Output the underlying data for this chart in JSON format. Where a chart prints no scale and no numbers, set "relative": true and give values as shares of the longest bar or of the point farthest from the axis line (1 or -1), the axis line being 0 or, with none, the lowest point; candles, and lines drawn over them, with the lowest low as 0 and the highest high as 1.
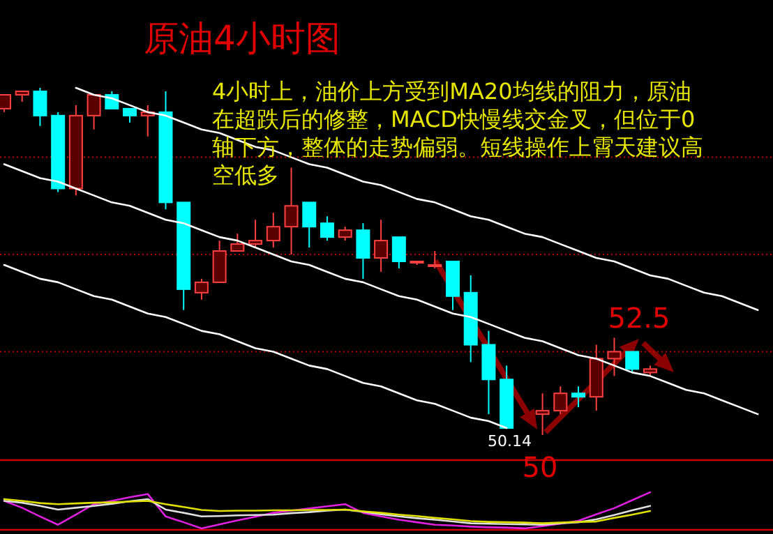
{
  "chart_data": [
    {
      "type": "candlestick",
      "title": "原油4小时图",
      "relative": true,
      "categories": [
        null,
        null,
        null,
        null,
        null,
        null,
        null,
        null,
        null,
        null,
        null,
        null,
        null,
        null,
        null,
        null,
        null,
        null,
        null,
        null,
        null,
        null,
        null,
        null,
        null,
        null,
        null,
        null,
        null,
        null,
        null,
        null,
        null,
        null,
        null,
        null,
        null,
        null,
        null,
        null,
        null,
        null,
        null
      ],
      "ohlc": [
        [
          0.94,
          0.98,
          0.93,
          0.98
        ],
        [
          0.98,
          0.99,
          0.96,
          0.99
        ],
        [
          0.99,
          1,
          0.89,
          0.92
        ],
        [
          0.92,
          0.93,
          0.7,
          0.71
        ],
        [
          0.71,
          0.95,
          0.69,
          0.92
        ],
        [
          0.92,
          0.98,
          0.88,
          0.98
        ],
        [
          0.98,
          0.99,
          0.94,
          0.94
        ],
        [
          0.94,
          0.94,
          0.9,
          0.92
        ],
        [
          0.92,
          0.95,
          0.86,
          0.93
        ],
        [
          0.93,
          0.99,
          0.65,
          0.67
        ],
        [
          0.67,
          0.67,
          0.36,
          0.42
        ],
        [
          0.41,
          0.45,
          0.39,
          0.44
        ],
        [
          0.44,
          0.56,
          0.44,
          0.53
        ],
        [
          0.53,
          0.58,
          0.53,
          0.55
        ],
        [
          0.55,
          0.62,
          0.54,
          0.56
        ],
        [
          0.56,
          0.64,
          0.54,
          0.6
        ],
        [
          0.6,
          0.77,
          0.52,
          0.66
        ],
        [
          0.67,
          0.67,
          0.54,
          0.6
        ],
        [
          0.61,
          0.63,
          0.56,
          0.57
        ],
        [
          0.57,
          0.6,
          0.56,
          0.59
        ],
        [
          0.59,
          0.61,
          0.45,
          0.51
        ],
        [
          0.51,
          0.62,
          0.47,
          0.56
        ],
        [
          0.57,
          0.57,
          0.48,
          0.5
        ],
        [
          0.5,
          0.5,
          0.49,
          0.5
        ],
        [
          0.49,
          0.53,
          0.48,
          0.49
        ],
        [
          0.5,
          0.5,
          0.36,
          0.4
        ],
        [
          0.41,
          0.46,
          0.21,
          0.26
        ],
        [
          0.26,
          0.3,
          0.06,
          0.16
        ],
        [
          0.16,
          0.2,
          0.02,
          0.02
        ],
        null,
        [
          0.06,
          0.12,
          0,
          0.07
        ],
        [
          0.07,
          0.14,
          0.06,
          0.12
        ],
        [
          0.12,
          0.14,
          0.08,
          0.11
        ],
        [
          0.11,
          0.26,
          0.07,
          0.22
        ],
        [
          0.22,
          0.28,
          0.17,
          0.24
        ],
        [
          0.24,
          0.24,
          0.18,
          0.19
        ],
        [
          0.18,
          0.2,
          0.17,
          0.19
        ],
        null,
        null,
        null,
        null,
        null,
        null
      ],
      "series": [
        {
          "type": "line",
          "color": "#ffffff",
          "values": [
            null,
            null,
            null,
            null,
            1.0,
            0.98,
            0.97,
            0.95,
            0.93,
            0.92,
            0.9,
            0.88,
            0.87,
            0.85,
            0.83,
            0.82,
            0.8,
            0.78,
            0.77,
            0.75,
            0.73,
            0.72,
            0.7,
            0.68,
            0.67,
            0.65,
            0.63,
            0.62,
            0.6,
            0.58,
            0.57,
            0.55,
            0.53,
            0.51,
            0.5,
            0.48,
            0.46,
            0.45,
            0.43,
            0.41,
            0.4,
            0.38,
            0.36
          ]
        },
        {
          "type": "line",
          "color": "#ffffff",
          "values": [
            0.78,
            0.76,
            0.74,
            0.73,
            0.71,
            0.69,
            0.67,
            0.66,
            0.64,
            0.62,
            0.61,
            0.59,
            0.57,
            0.56,
            0.54,
            0.52,
            0.5,
            0.49,
            0.47,
            0.45,
            0.44,
            0.42,
            0.4,
            0.39,
            0.37,
            0.35,
            0.34,
            0.32,
            0.3,
            0.28,
            0.27,
            0.25,
            0.23,
            0.22,
            0.2,
            0.18,
            0.17,
            0.15,
            0.13,
            0.12,
            0.1,
            0.08,
            0.06
          ]
        },
        {
          "type": "line",
          "color": "#ffffff",
          "values": [
            0.49,
            0.47,
            0.45,
            0.44,
            0.42,
            0.4,
            0.39,
            0.37,
            0.35,
            0.34,
            0.32,
            0.3,
            0.29,
            0.27,
            0.25,
            0.24,
            0.22,
            0.2,
            0.19,
            0.17,
            0.15,
            0.14,
            0.12,
            0.1,
            0.09,
            0.07,
            0.05,
            0.04,
            0.02,
            null,
            null,
            null,
            null,
            null,
            null,
            null,
            null,
            null,
            null,
            null,
            null,
            null,
            null
          ]
        }
      ],
      "ref_lines": [
        {
          "axis": "y",
          "value": 0.8,
          "color": "#c00000",
          "line_style": "dotted"
        },
        {
          "axis": "y",
          "value": 0.52,
          "color": "#c00000",
          "line_style": "dotted"
        },
        {
          "axis": "y",
          "value": 0.24,
          "color": "#c00000",
          "line_style": "dotted"
        }
      ],
      "annotations": [
        "4小时上，油价上方受到MA20均线的阻力，原油在超跌后的修整，MACD快慢线交金叉，但位于0轴下方，整体的走势偏弱。短线操作上霄天建议高空低多",
        {
          "text": "50.14",
          "y": 0
        },
        {
          "text": "50",
          "y": 0
        },
        "52.5"
      ]
    },
    {
      "type": "line",
      "relative": true,
      "categories": [
        null,
        null,
        null,
        null,
        null,
        null,
        null,
        null,
        null,
        null,
        null,
        null,
        null,
        null,
        null,
        null,
        null,
        null,
        null,
        null,
        null,
        null,
        null,
        null,
        null,
        null,
        null,
        null,
        null,
        null,
        null,
        null,
        null,
        null,
        null,
        null,
        null
      ],
      "series": [
        {
          "color": "#e020e0",
          "values": [
            0.76,
            0.57,
            0.33,
            0.1,
            0.38,
            0.67,
            0.76,
            0.86,
            0.95,
            0.33,
            0.17,
            0,
            0.11,
            0.22,
            0.32,
            0.43,
            0.49,
            0.55,
            0.61,
            0.67,
            0.43,
            0.33,
            0.24,
            0.17,
            0.1,
            0.08,
            0.05,
            0.03,
            0.02,
            0,
            0.06,
            0.13,
            0.21,
            0.39,
            0.56,
            0.78,
            1
          ]
        },
        {
          "color": "#e0e0e0",
          "values": [
            0.76,
            0.71,
            0.62,
            0.52,
            0.57,
            0.62,
            0.68,
            0.75,
            0.81,
            0.52,
            0.43,
            0.33,
            0.34,
            0.36,
            0.37,
            0.38,
            0.42,
            0.45,
            0.49,
            0.52,
            0.46,
            0.39,
            0.33,
            0.28,
            0.24,
            0.19,
            0.14,
            0.13,
            0.12,
            0.11,
            0.1,
            0.14,
            0.17,
            0.25,
            0.37,
            0.5,
            0.62
          ]
        },
        {
          "color": "#e0e000",
          "values": [
            0.81,
            0.76,
            0.7,
            0.67,
            0.69,
            0.71,
            0.72,
            0.74,
            0.76,
            0.67,
            0.59,
            0.51,
            0.48,
            0.49,
            0.49,
            0.5,
            0.5,
            0.51,
            0.51,
            0.52,
            0.47,
            0.43,
            0.38,
            0.34,
            0.29,
            0.25,
            0.2,
            0.18,
            0.17,
            0.16,
            0.14,
            0.16,
            0.18,
            0.19,
            0.29,
            0.38,
            0.48
          ]
        }
      ]
    }
  ]
}
